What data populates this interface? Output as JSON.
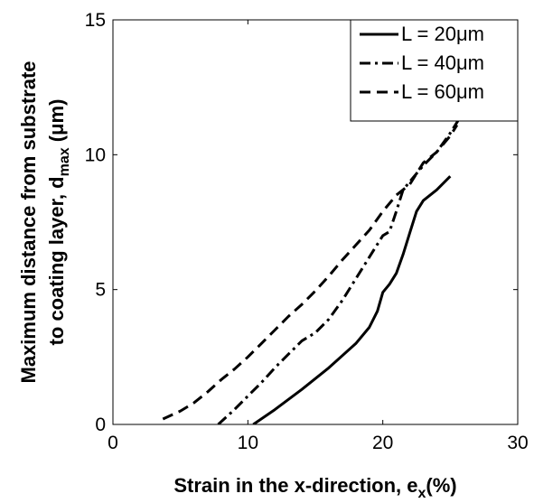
{
  "chart_data": {
    "type": "line",
    "xlabel": {
      "main": "Strain in the x-direction, e",
      "sub": "x",
      "tail": "(%)"
    },
    "ylabel": {
      "line1": "Maximum distance from substrate",
      "line2_main": "to coating layer, d",
      "line2_sub": "max",
      "line2_tail": " (μm)"
    },
    "xlim": [
      0,
      30
    ],
    "ylim": [
      0,
      15
    ],
    "xticks": [
      "0",
      "10",
      "20",
      "30"
    ],
    "yticks": [
      "0",
      "5",
      "10",
      "15"
    ],
    "grid": false,
    "legend": {
      "placement": "top-right"
    },
    "series": [
      {
        "name": "L = 20μm",
        "style": "solid",
        "x": [
          10.4,
          12.0,
          14.0,
          16.0,
          18.0,
          19.0,
          19.6,
          20.0,
          20.5,
          21.0,
          21.5,
          22.0,
          22.5,
          23.0,
          24.0,
          25.0
        ],
        "y": [
          0.0,
          0.55,
          1.3,
          2.1,
          3.0,
          3.6,
          4.2,
          4.9,
          5.2,
          5.6,
          6.3,
          7.1,
          7.9,
          8.3,
          8.7,
          9.2
        ]
      },
      {
        "name": "L = 40μm",
        "style": "dashdot",
        "x": [
          7.8,
          9.0,
          10.0,
          11.0,
          12.0,
          13.0,
          14.0,
          15.0,
          16.0,
          17.0,
          18.0,
          19.0,
          20.0,
          20.5,
          21.0,
          21.5,
          22.0,
          22.5,
          23.0,
          24.0,
          25.0,
          26.0,
          27.0
        ],
        "y": [
          0.0,
          0.55,
          1.05,
          1.55,
          2.1,
          2.6,
          3.1,
          3.4,
          3.9,
          4.6,
          5.4,
          6.2,
          7.0,
          7.15,
          7.9,
          8.7,
          9.0,
          9.3,
          9.6,
          10.1,
          10.8,
          11.6,
          12.2
        ]
      },
      {
        "name": "L = 60μm",
        "style": "dashed",
        "x": [
          3.7,
          5.0,
          6.0,
          7.0,
          8.0,
          9.0,
          10.0,
          11.0,
          12.0,
          13.0,
          14.0,
          15.0,
          16.0,
          17.0,
          18.0,
          19.0,
          20.0,
          21.0,
          22.0,
          22.5,
          23.0,
          24.0,
          25.0,
          25.5
        ],
        "y": [
          0.2,
          0.5,
          0.8,
          1.2,
          1.65,
          2.05,
          2.5,
          3.0,
          3.5,
          4.0,
          4.45,
          4.95,
          5.5,
          6.1,
          6.65,
          7.2,
          7.9,
          8.5,
          8.9,
          9.3,
          9.7,
          10.1,
          10.7,
          11.1
        ]
      }
    ]
  }
}
